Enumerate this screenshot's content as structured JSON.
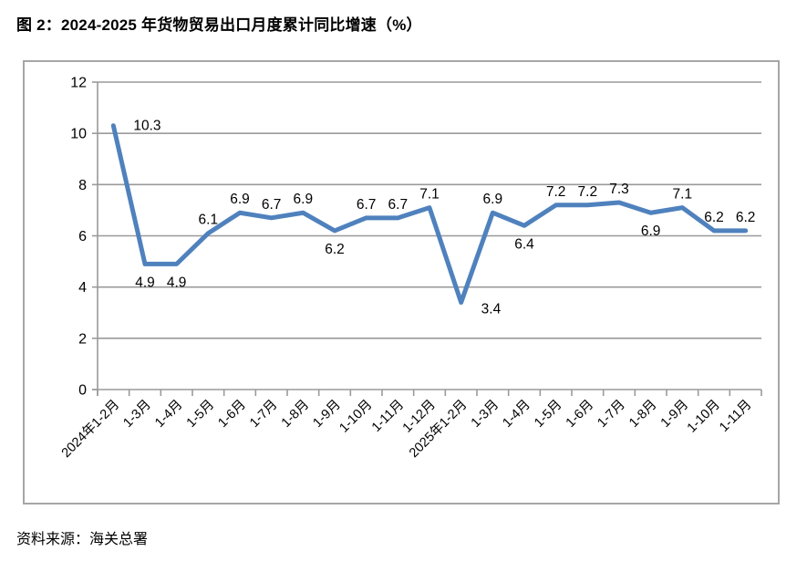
{
  "figure": {
    "title": "图 2：2024-2025 年货物贸易出口月度累计同比增速（%）",
    "source": "资料来源：海关总署"
  },
  "chart_data": {
    "type": "line",
    "title": "图 2：2024-2025 年货物贸易出口月度累计同比增速（%）",
    "categories": [
      "2024年1-2月",
      "1-3月",
      "1-4月",
      "1-5月",
      "1-6月",
      "1-7月",
      "1-8月",
      "1-9月",
      "1-10月",
      "1-11月",
      "1-12月",
      "2025年1-2月",
      "1-3月",
      "1-4月",
      "1-5月",
      "1-6月",
      "1-7月",
      "1-8月",
      "1-9月",
      "1-10月",
      "1-11月"
    ],
    "values": [
      10.3,
      4.9,
      4.9,
      6.1,
      6.9,
      6.7,
      6.9,
      6.2,
      6.7,
      6.7,
      7.1,
      3.4,
      6.9,
      6.4,
      7.2,
      7.2,
      7.3,
      6.9,
      7.1,
      6.2,
      6.2
    ],
    "label_positions": [
      "right",
      "below",
      "below",
      "above",
      "above",
      "above",
      "above",
      "below",
      "above",
      "above",
      "above",
      "below-right",
      "above",
      "below",
      "above",
      "above",
      "above",
      "below",
      "above",
      "above",
      "above"
    ],
    "xlabel": "",
    "ylabel": "",
    "ylim": [
      0,
      12
    ],
    "yticks": [
      0,
      2,
      4,
      6,
      8,
      10,
      12
    ],
    "grid": true,
    "legend": false,
    "line_color": "#4F81BD",
    "grid_color": "#9A9A9A",
    "frame_border_color": "#A6A6A6",
    "text_color": "#000000"
  }
}
